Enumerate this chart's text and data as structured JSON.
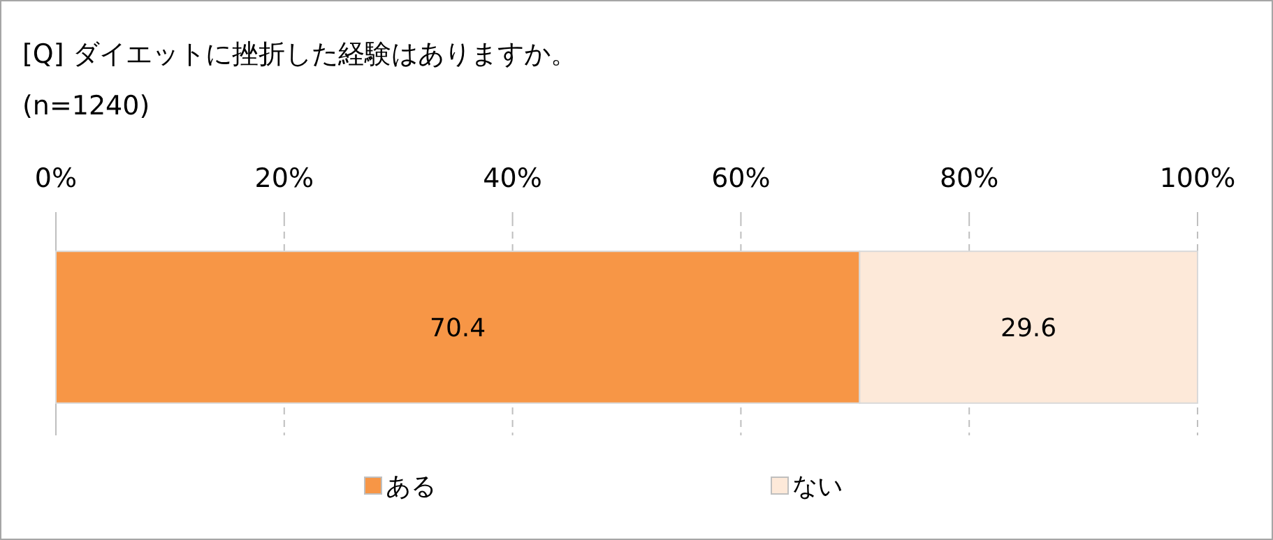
{
  "chart_data": {
    "type": "bar",
    "title": "[Q] ダイエットに挫折した経験はありますか。",
    "subtitle": "(n=1240)",
    "orientation": "horizontal",
    "stacked": true,
    "categories": [
      null
    ],
    "series": [
      {
        "name": "ある",
        "color": "#f79646",
        "values": [
          70.4
        ]
      },
      {
        "name": "ない",
        "color": "#fde9d9",
        "values": [
          29.6
        ]
      }
    ],
    "xlim": [
      0,
      100
    ],
    "xticks": [
      {
        "value": 0,
        "label": "0%"
      },
      {
        "value": 20,
        "label": "20%"
      },
      {
        "value": 40,
        "label": "40%"
      },
      {
        "value": 60,
        "label": "60%"
      },
      {
        "value": 80,
        "label": "80%"
      },
      {
        "value": 100,
        "label": "100%"
      }
    ],
    "grid": "x",
    "legend": "bottom",
    "data_labels": true
  }
}
